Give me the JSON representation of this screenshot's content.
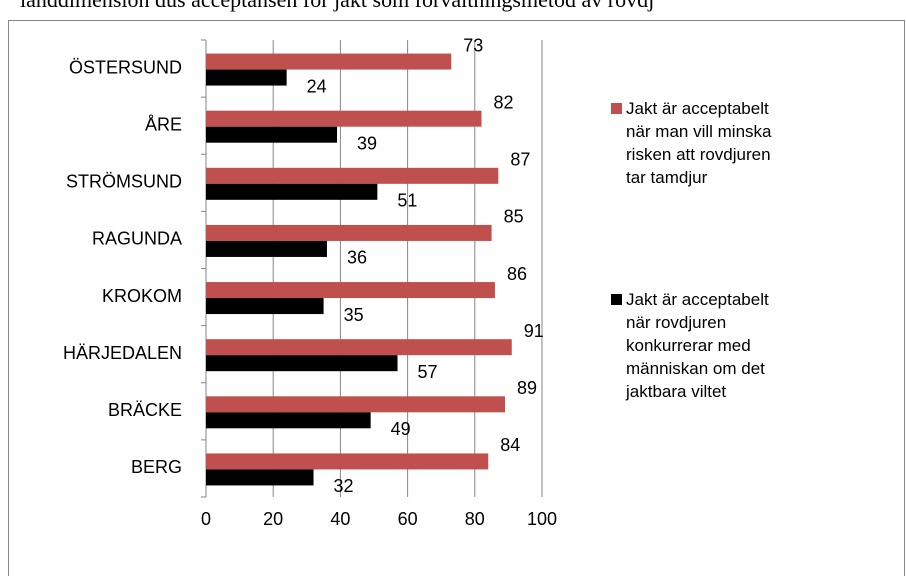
{
  "chart_data": {
    "type": "bar",
    "orientation": "horizontal",
    "title": "landdimension dus acceptansen för jakt som förvaltningsmetod av rovdj",
    "categories": [
      "ÖSTERSUND",
      "ÅRE",
      "STRÖMSUND",
      "RAGUNDA",
      "KROKOM",
      "HÄRJEDALEN",
      "BRÄCKE",
      "BERG"
    ],
    "series": [
      {
        "name": "Jakt är acceptabelt när man vill minska risken att rovdjuren tar tamdjur",
        "color": "#c0504d",
        "values": [
          73,
          82,
          87,
          85,
          86,
          91,
          89,
          84
        ]
      },
      {
        "name": "Jakt är acceptabelt när rovdjuren konkurrerar med människan om det jaktbara viltet",
        "color": "#000000",
        "values": [
          24,
          39,
          51,
          36,
          35,
          57,
          49,
          32
        ]
      }
    ],
    "xlim": [
      0,
      100
    ],
    "xticks": [
      0,
      20,
      40,
      60,
      80,
      100
    ],
    "grid": true,
    "legend": "right"
  }
}
